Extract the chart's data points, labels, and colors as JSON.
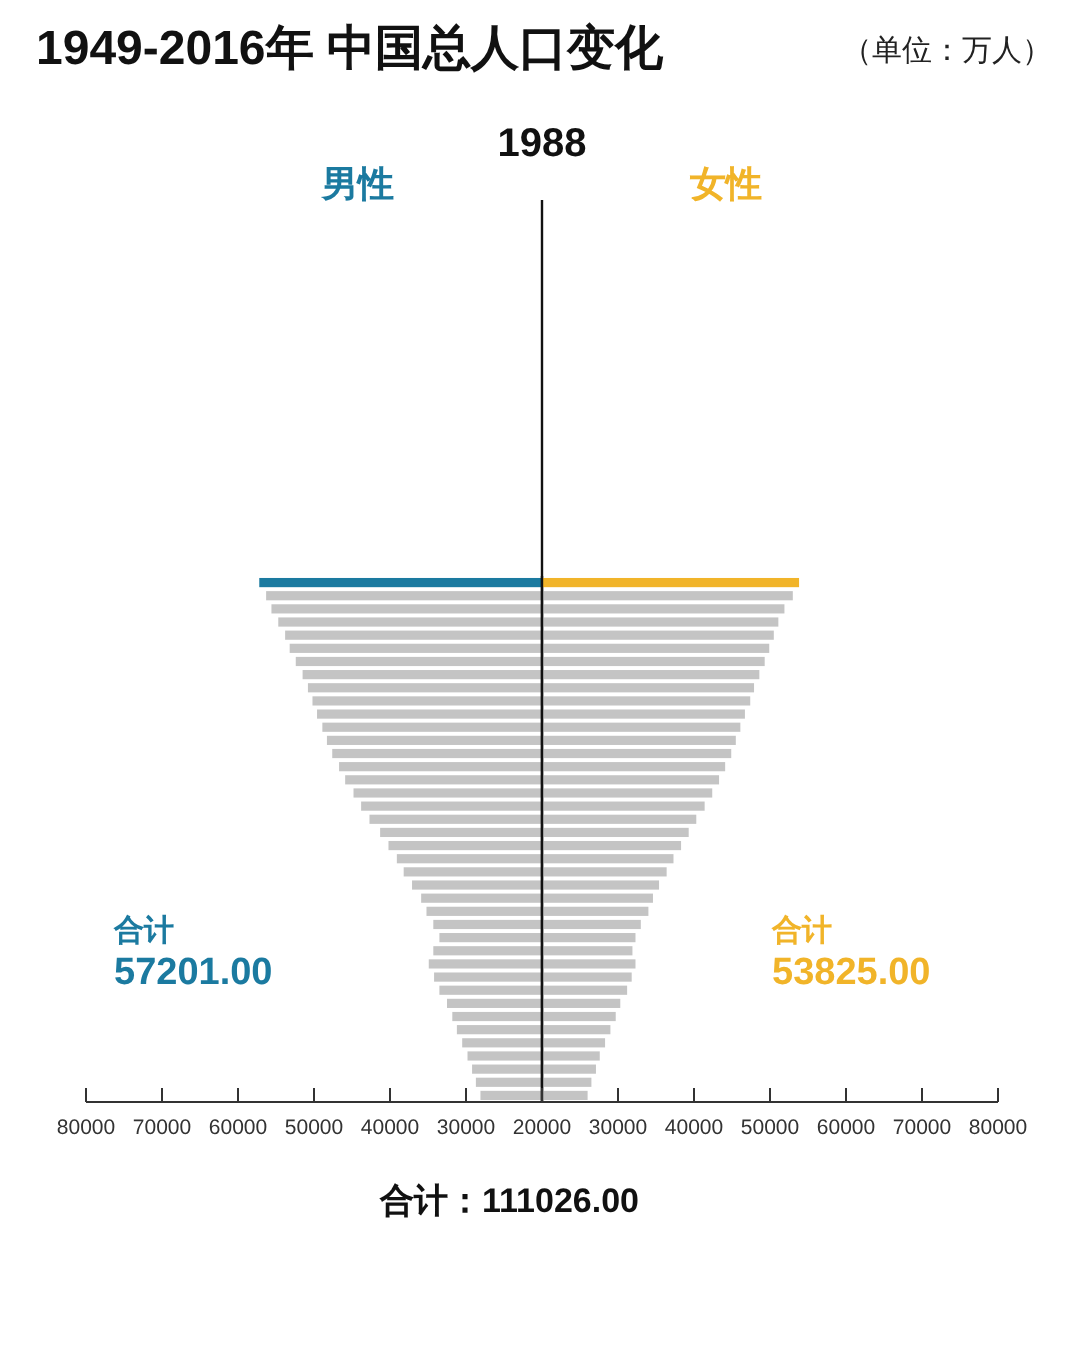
{
  "chart_data": [
    {
      "type": "bar",
      "orientation": "horizontal",
      "title": "1949-2016年 中国总人口变化",
      "categories": [
        null,
        null,
        null,
        null,
        null,
        null,
        null,
        null,
        null,
        null,
        null,
        null,
        null,
        null,
        null,
        null,
        null,
        null,
        null,
        null,
        null,
        null,
        null,
        null,
        null,
        null,
        null,
        null,
        null,
        null,
        null,
        null,
        null,
        null,
        null,
        null,
        null,
        null,
        null,
        null
      ],
      "series": [
        {
          "name": "男性",
          "color": "#1b7aa0",
          "colors": [
            "#1b7aa0",
            "#c4c4c4",
            "#c4c4c4",
            "#c4c4c4",
            "#c4c4c4",
            "#c4c4c4",
            "#c4c4c4",
            "#c4c4c4",
            "#c4c4c4",
            "#c4c4c4",
            "#c4c4c4",
            "#c4c4c4",
            "#c4c4c4",
            "#c4c4c4",
            "#c4c4c4",
            "#c4c4c4",
            "#c4c4c4",
            "#c4c4c4",
            "#c4c4c4",
            "#c4c4c4",
            "#c4c4c4",
            "#c4c4c4",
            "#c4c4c4",
            "#c4c4c4",
            "#c4c4c4",
            "#c4c4c4",
            "#c4c4c4",
            "#c4c4c4",
            "#c4c4c4",
            "#c4c4c4",
            "#c4c4c4",
            "#c4c4c4",
            "#c4c4c4",
            "#c4c4c4",
            "#c4c4c4",
            "#c4c4c4",
            "#c4c4c4",
            "#c4c4c4",
            "#c4c4c4",
            "#c4c4c4"
          ],
          "values": [
            57201,
            56300,
            55600,
            54700,
            53800,
            53200,
            52400,
            51500,
            50800,
            50200,
            49600,
            48900,
            48300,
            47600,
            46700,
            45900,
            44800,
            43800,
            42700,
            41300,
            40200,
            39100,
            38200,
            37100,
            35900,
            35200,
            34300,
            33500,
            34300,
            34900,
            34200,
            33500,
            32500,
            31800,
            31200,
            30500,
            29800,
            29200,
            28700,
            28100
          ]
        }
      ],
      "xlim": [
        80000,
        20000
      ],
      "xticks": [
        80000,
        70000,
        60000,
        50000,
        40000,
        30000,
        20000
      ],
      "annotations": [
        "1988",
        "合计\n57201.00",
        "合计：111026.00"
      ]
    },
    {
      "type": "bar",
      "orientation": "horizontal",
      "categories": [
        null,
        null,
        null,
        null,
        null,
        null,
        null,
        null,
        null,
        null,
        null,
        null,
        null,
        null,
        null,
        null,
        null,
        null,
        null,
        null,
        null,
        null,
        null,
        null,
        null,
        null,
        null,
        null,
        null,
        null,
        null,
        null,
        null,
        null,
        null,
        null,
        null,
        null,
        null,
        null
      ],
      "series": [
        {
          "name": "女性",
          "color": "#f1b429",
          "colors": [
            "#f1b429",
            "#c4c4c4",
            "#c4c4c4",
            "#c4c4c4",
            "#c4c4c4",
            "#c4c4c4",
            "#c4c4c4",
            "#c4c4c4",
            "#c4c4c4",
            "#c4c4c4",
            "#c4c4c4",
            "#c4c4c4",
            "#c4c4c4",
            "#c4c4c4",
            "#c4c4c4",
            "#c4c4c4",
            "#c4c4c4",
            "#c4c4c4",
            "#c4c4c4",
            "#c4c4c4",
            "#c4c4c4",
            "#c4c4c4",
            "#c4c4c4",
            "#c4c4c4",
            "#c4c4c4",
            "#c4c4c4",
            "#c4c4c4",
            "#c4c4c4",
            "#c4c4c4",
            "#c4c4c4",
            "#c4c4c4",
            "#c4c4c4",
            "#c4c4c4",
            "#c4c4c4",
            "#c4c4c4",
            "#c4c4c4",
            "#c4c4c4",
            "#c4c4c4",
            "#c4c4c4",
            "#c4c4c4"
          ],
          "values": [
            53825,
            53000,
            51900,
            51100,
            50500,
            49900,
            49300,
            48600,
            47900,
            47400,
            46700,
            46100,
            45500,
            44900,
            44100,
            43300,
            42400,
            41400,
            40300,
            39300,
            38300,
            37300,
            36400,
            35400,
            34600,
            34000,
            33000,
            32300,
            31900,
            32300,
            31800,
            31200,
            30300,
            29700,
            29000,
            28300,
            27600,
            27100,
            26500,
            26000
          ]
        }
      ],
      "xlim": [
        20000,
        80000
      ],
      "xticks": [
        {
          "value": 20000,
          "label": null
        },
        30000,
        40000,
        50000,
        60000,
        70000,
        80000
      ],
      "annotations": [
        "合计\n53825.00",
        "（单位：万人）"
      ]
    }
  ]
}
